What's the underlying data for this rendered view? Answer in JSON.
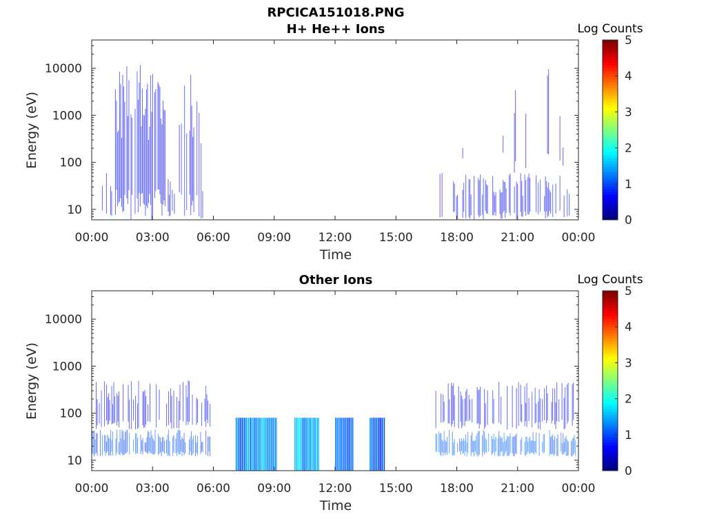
{
  "figure_title": "RPCICA151018.PNG",
  "colorbar": {
    "label": "Log Counts",
    "ticks": [
      0,
      1,
      2,
      3,
      4,
      5
    ],
    "range": [
      0,
      5
    ],
    "colormap": "jet"
  },
  "chart_data": [
    {
      "type": "heatmap",
      "title": "H+ He++ Ions",
      "xlabel": "Time",
      "ylabel": "Energy (eV)",
      "x_ticks": [
        "00:00",
        "03:00",
        "06:00",
        "09:00",
        "12:00",
        "15:00",
        "18:00",
        "21:00",
        "00:00"
      ],
      "xlim_hours": [
        0,
        24
      ],
      "y_scale": "log",
      "y_ticks": [
        10,
        100,
        1000,
        10000
      ],
      "y_tick_labels": [
        "10",
        "100",
        "1000",
        "10000"
      ],
      "ylim": [
        6,
        40000
      ],
      "grid": false,
      "regions": [
        {
          "t_start": 0.2,
          "t_end": 1.1,
          "e_min": 6,
          "e_max": 80,
          "log_counts": 0.5,
          "density": "low"
        },
        {
          "t_start": 1.1,
          "t_end": 3.6,
          "e_min": 6,
          "e_max": 12000,
          "log_counts": 0.6,
          "density": "high"
        },
        {
          "t_start": 3.6,
          "t_end": 4.1,
          "e_min": 6,
          "e_max": 60,
          "log_counts": 0.5,
          "density": "medium"
        },
        {
          "t_start": 4.1,
          "t_end": 5.4,
          "e_min": 6,
          "e_max": 10000,
          "log_counts": 0.6,
          "density": "medium"
        },
        {
          "t_start": 5.4,
          "t_end": 5.8,
          "e_min": 6,
          "e_max": 50,
          "log_counts": 0.5,
          "density": "low"
        },
        {
          "t_start": 16.95,
          "t_end": 23.6,
          "e_min": 6,
          "e_max": 60,
          "log_counts": 0.6,
          "density": "medium"
        },
        {
          "t_start": 17.0,
          "t_end": 23.6,
          "e_min": 60,
          "e_max": 10000,
          "log_counts": 0.4,
          "density": "sparse"
        }
      ]
    },
    {
      "type": "heatmap",
      "title": "Other Ions",
      "xlabel": "Time",
      "ylabel": "Energy (eV)",
      "x_ticks": [
        "00:00",
        "03:00",
        "06:00",
        "09:00",
        "12:00",
        "15:00",
        "18:00",
        "21:00",
        "00:00"
      ],
      "xlim_hours": [
        0,
        24
      ],
      "y_scale": "log",
      "y_ticks": [
        10,
        100,
        1000,
        10000
      ],
      "y_tick_labels": [
        "10",
        "100",
        "1000",
        "10000"
      ],
      "ylim": [
        6,
        40000
      ],
      "grid": false,
      "regions": [
        {
          "t_start": 0.0,
          "t_end": 5.85,
          "e_min": 12,
          "e_max": 45,
          "log_counts": 1.0,
          "density": "high"
        },
        {
          "t_start": 0.0,
          "t_end": 5.85,
          "e_min": 45,
          "e_max": 500,
          "log_counts": 0.6,
          "density": "medium"
        },
        {
          "t_start": 7.1,
          "t_end": 9.1,
          "e_min": 6,
          "e_max": 80,
          "log_counts": 1.3,
          "density": "full"
        },
        {
          "t_start": 10.0,
          "t_end": 11.2,
          "e_min": 6,
          "e_max": 80,
          "log_counts": 1.5,
          "density": "full"
        },
        {
          "t_start": 12.0,
          "t_end": 12.9,
          "e_min": 6,
          "e_max": 80,
          "log_counts": 1.2,
          "density": "full"
        },
        {
          "t_start": 13.7,
          "t_end": 14.45,
          "e_min": 6,
          "e_max": 80,
          "log_counts": 1.1,
          "density": "full"
        },
        {
          "t_start": 16.95,
          "t_end": 23.9,
          "e_min": 12,
          "e_max": 45,
          "log_counts": 1.1,
          "density": "high"
        },
        {
          "t_start": 16.95,
          "t_end": 23.9,
          "e_min": 45,
          "e_max": 500,
          "log_counts": 0.6,
          "density": "medium"
        }
      ]
    }
  ]
}
